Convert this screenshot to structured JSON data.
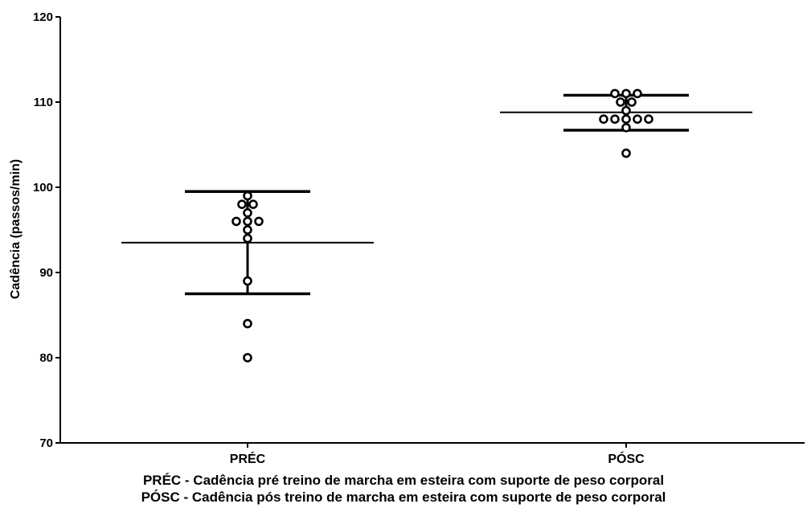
{
  "chart_data": {
    "type": "scatter",
    "ylabel": "Cadência (passos/min)",
    "ylim": [
      70,
      120
    ],
    "yticks": [
      70,
      80,
      90,
      100,
      110,
      120
    ],
    "categories": [
      "PRÉC",
      "PÓSC"
    ],
    "groups": [
      {
        "name": "PRÉC",
        "values": [
          80,
          84,
          89,
          94,
          95,
          96,
          96,
          96,
          97,
          98,
          98,
          99
        ],
        "mean": 93.5,
        "sd_upper": 99.5,
        "sd_lower": 87.5
      },
      {
        "name": "PÓSC",
        "values": [
          104,
          107,
          108,
          108,
          108,
          108,
          108,
          109,
          110,
          110,
          111,
          111,
          111
        ],
        "mean": 108.8,
        "sd_upper": 110.8,
        "sd_lower": 106.7
      }
    ],
    "grid": false,
    "legend": "none"
  },
  "captions": {
    "line1": "PRÉC - Cadência pré treino de marcha em esteira com suporte de peso corporal",
    "line2": "PÓSC - Cadência pós treino de marcha em esteira com suporte de peso corporal"
  }
}
